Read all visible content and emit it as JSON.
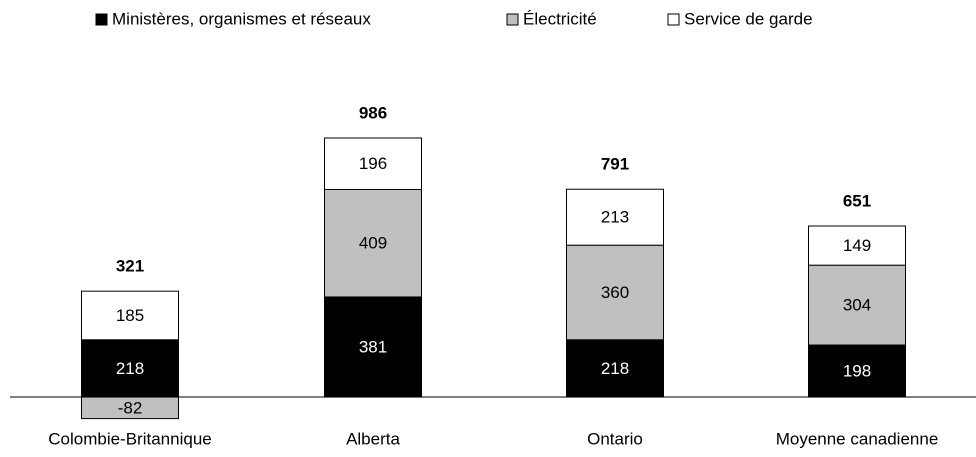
{
  "chart_data": {
    "type": "stacked_bar",
    "categories": [
      "Colombie-Britannique",
      "Alberta",
      "Ontario",
      "Moyenne canadienne"
    ],
    "series": [
      {
        "name": "Ministères, organismes et réseaux",
        "color": "#000000",
        "values": [
          218,
          381,
          218,
          198
        ]
      },
      {
        "name": "Électricité",
        "color": "#c0c0c0",
        "values": [
          -82,
          409,
          360,
          304
        ]
      },
      {
        "name": "Service de garde",
        "color": "#ffffff",
        "values": [
          185,
          196,
          213,
          149
        ]
      }
    ],
    "totals": [
      321,
      986,
      791,
      651
    ],
    "legend": "top"
  }
}
